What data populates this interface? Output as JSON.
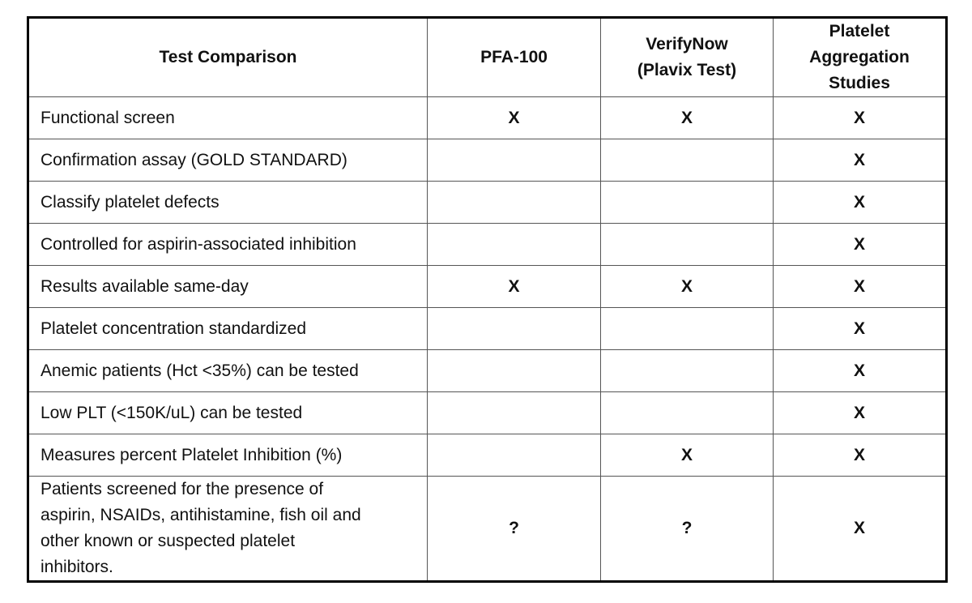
{
  "table": {
    "header": [
      [
        "Test Comparison"
      ],
      [
        "PFA-100"
      ],
      [
        "VerifyNow",
        "(Plavix Test)"
      ],
      [
        "Platelet",
        "Aggregation",
        "Studies"
      ]
    ],
    "rows": [
      [
        "Functional screen",
        "X",
        "X",
        "X"
      ],
      [
        "Confirmation assay (GOLD STANDARD)",
        null,
        null,
        "X"
      ],
      [
        "Classify platelet defects",
        null,
        null,
        "X"
      ],
      [
        "Controlled for aspirin-associated inhibition",
        null,
        null,
        "X"
      ],
      [
        "Results available same-day",
        "X",
        "X",
        "X"
      ],
      [
        "Platelet concentration standardized",
        null,
        null,
        "X"
      ],
      [
        "Anemic patients (Hct <35%) can be tested",
        null,
        null,
        "X"
      ],
      [
        "Low PLT (<150K/uL) can be tested",
        null,
        null,
        "X"
      ],
      [
        "Measures percent Platelet Inhibition (%)",
        null,
        "X",
        "X"
      ],
      [
        [
          "Patients screened for the presence of",
          "aspirin, NSAIDs, antihistamine, fish oil and",
          "other known or suspected platelet",
          "inhibitors."
        ],
        "?",
        "?",
        "X"
      ]
    ]
  }
}
